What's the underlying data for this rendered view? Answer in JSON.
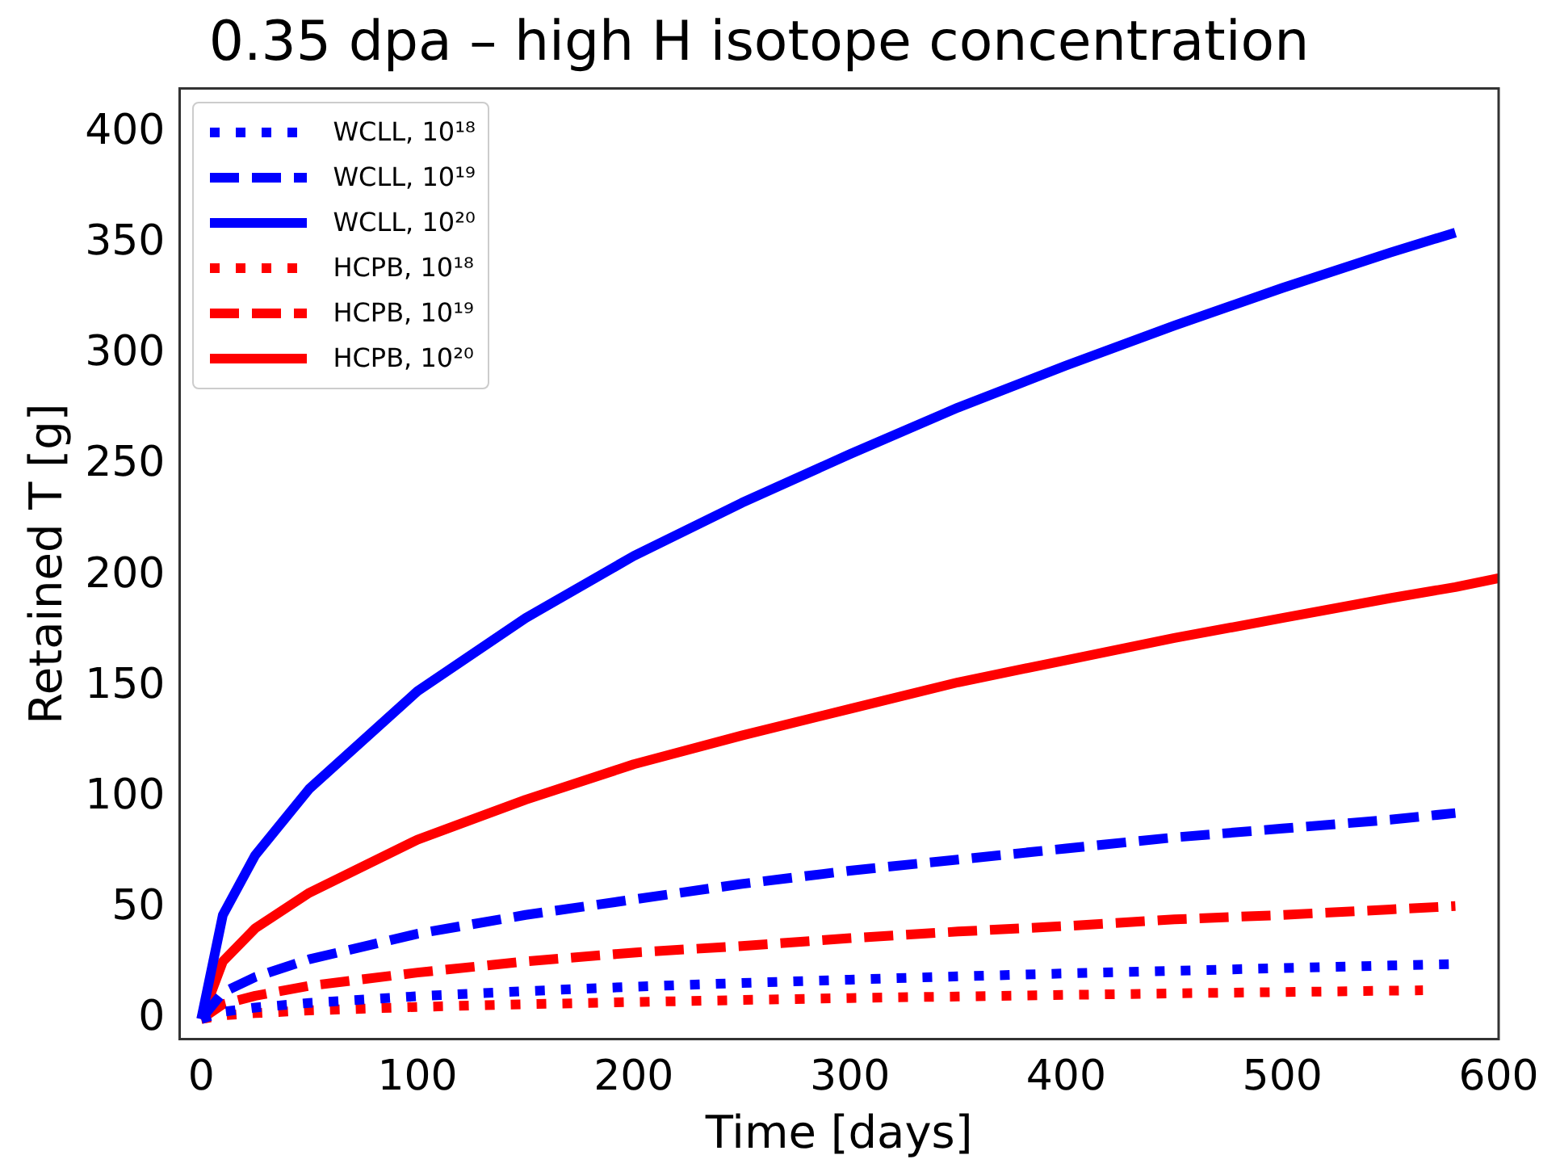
{
  "chart_data": {
    "type": "line",
    "title": "0.35 dpa – high H isotope concentration",
    "xlabel": "Time [days]",
    "ylabel": "Retained T [g]",
    "xlim": [
      -10,
      600
    ],
    "xticks": [
      0,
      100,
      200,
      300,
      400,
      500,
      600
    ],
    "ylim": [
      -9,
      420
    ],
    "yticks": [
      0,
      50,
      100,
      150,
      200,
      250,
      300,
      350,
      400
    ],
    "grid": false,
    "legend": "top left",
    "marker": "none",
    "series": [
      {
        "name": "WCLL, 10¹⁸",
        "color": "#0000ff",
        "line_style": "dotted",
        "x": [
          0,
          10,
          25,
          50,
          100,
          150,
          200,
          250,
          300,
          350,
          400,
          450,
          500,
          550,
          580
        ],
        "values": [
          0,
          3.3,
          5.2,
          7.3,
          10.3,
          12.6,
          14.6,
          16.3,
          17.8,
          19.3,
          20.6,
          21.8,
          23,
          24.2,
          24.8
        ]
      },
      {
        "name": "WCLL, 10¹⁹",
        "color": "#0000ff",
        "line_style": "dashed",
        "x": [
          0,
          10,
          25,
          50,
          100,
          150,
          200,
          250,
          300,
          350,
          400,
          450,
          500,
          550,
          580
        ],
        "values": [
          0,
          12,
          19,
          27,
          38.5,
          47,
          54,
          61,
          67,
          72,
          77,
          82,
          86,
          90,
          93
        ]
      },
      {
        "name": "WCLL, 10²⁰",
        "color": "#0000ff",
        "line_style": "solid",
        "x": [
          0,
          10,
          25,
          50,
          100,
          150,
          200,
          250,
          300,
          350,
          400,
          450,
          500,
          550,
          580
        ],
        "values": [
          0,
          47,
          74,
          104,
          148,
          181,
          209,
          233,
          255,
          276,
          295,
          313,
          330,
          346,
          355
        ]
      },
      {
        "name": "HCPB, 10¹⁸",
        "color": "#ff0000",
        "line_style": "dotted",
        "x": [
          0,
          10,
          25,
          50,
          100,
          150,
          200,
          250,
          300,
          350,
          400,
          450,
          500,
          550,
          565
        ],
        "values": [
          0,
          1.7,
          2.7,
          3.9,
          5.5,
          6.7,
          7.7,
          8.6,
          9.5,
          10.2,
          10.9,
          11.6,
          12.2,
          12.8,
          13
        ]
      },
      {
        "name": "HCPB, 10¹⁹",
        "color": "#ff0000",
        "line_style": "dashed",
        "x": [
          0,
          10,
          25,
          50,
          100,
          150,
          200,
          250,
          300,
          350,
          400,
          450,
          500,
          550,
          580
        ],
        "values": [
          0,
          6.7,
          10.5,
          15,
          21,
          26,
          30,
          33,
          36.5,
          39.5,
          42,
          45,
          47,
          49.5,
          51
        ]
      },
      {
        "name": "HCPB, 10²⁰",
        "color": "#ff0000",
        "line_style": "solid",
        "x": [
          0,
          10,
          25,
          50,
          100,
          150,
          200,
          250,
          300,
          350,
          400,
          450,
          500,
          550,
          580,
          600
        ],
        "values": [
          0,
          26,
          41,
          57,
          81,
          99,
          115,
          128,
          140,
          152,
          162,
          172,
          181,
          190,
          195,
          199
        ]
      }
    ]
  }
}
